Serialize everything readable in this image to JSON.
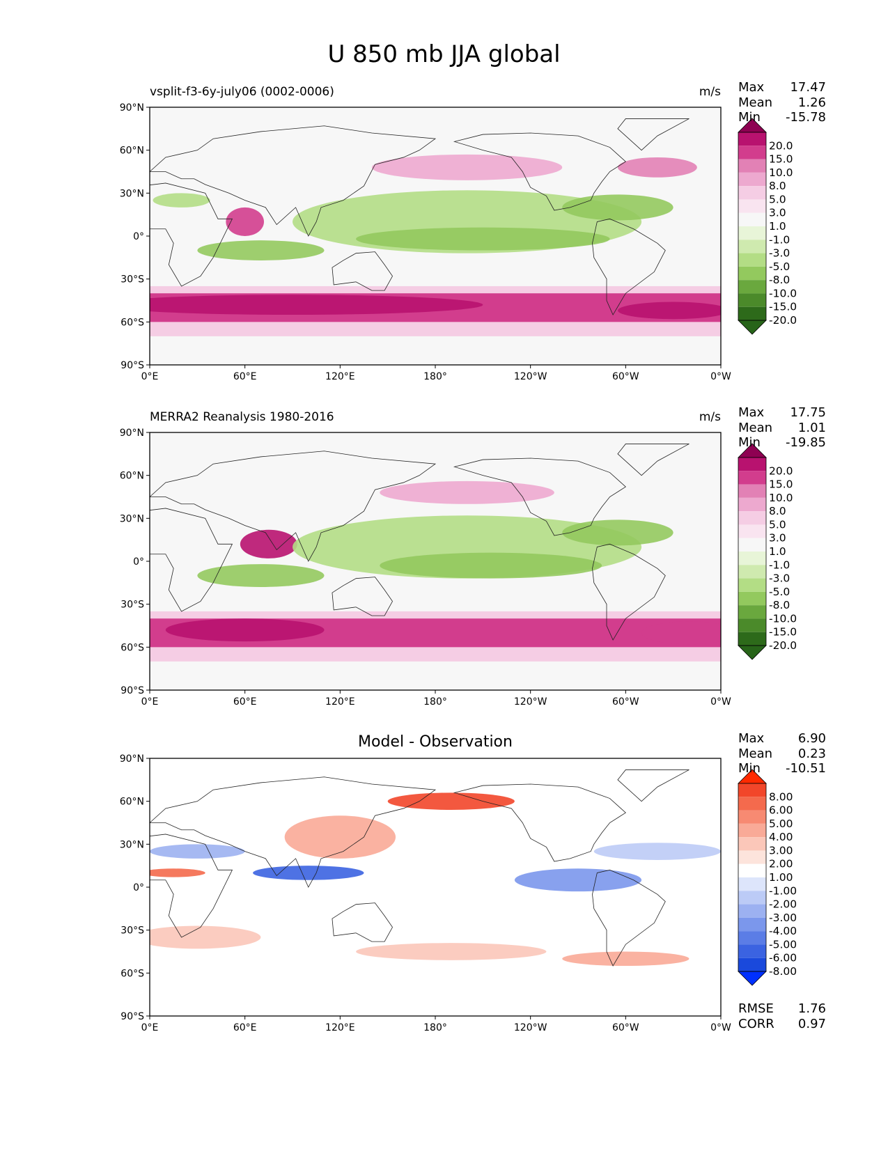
{
  "title": "U 850 mb JJA global",
  "x_ticks": [
    "0°E",
    "60°E",
    "120°E",
    "180°",
    "120°W",
    "60°W",
    "0°W"
  ],
  "y_ticks": [
    "90°N",
    "60°N",
    "30°N",
    "0°",
    "30°S",
    "60°S",
    "90°S"
  ],
  "panels": [
    {
      "left_label": "vsplit-f3-6y-july06 (0002-0006)",
      "center_label": "",
      "units": "m/s",
      "stats": {
        "max_label": "Max",
        "max": "17.47",
        "mean_label": "Mean",
        "mean": "1.26",
        "min_label": "Min",
        "min": "-15.78"
      },
      "colorbar_labels": [
        "20.0",
        "15.0",
        "10.0",
        "8.0",
        "5.0",
        "3.0",
        "1.0",
        "-1.0",
        "-3.0",
        "-5.0",
        "-8.0",
        "-10.0",
        "-15.0",
        "-20.0"
      ],
      "colorbar_colors": [
        "#8e0152",
        "#b8126f",
        "#d23d8d",
        "#e281b5",
        "#eda9cf",
        "#f5cde4",
        "#f9e4f0",
        "#f7f7f7",
        "#e8f5d8",
        "#cfeaaf",
        "#b3dd85",
        "#93c95e",
        "#6aa83e",
        "#4b8a2a",
        "#2d6a1a",
        "#276419"
      ]
    },
    {
      "left_label": "MERRA2 Reanalysis 1980-2016",
      "center_label": "",
      "units": "m/s",
      "stats": {
        "max_label": "Max",
        "max": "17.75",
        "mean_label": "Mean",
        "mean": "1.01",
        "min_label": "Min",
        "min": "-19.85"
      },
      "colorbar_labels": [
        "20.0",
        "15.0",
        "10.0",
        "8.0",
        "5.0",
        "3.0",
        "1.0",
        "-1.0",
        "-3.0",
        "-5.0",
        "-8.0",
        "-10.0",
        "-15.0",
        "-20.0"
      ],
      "colorbar_colors": [
        "#8e0152",
        "#b8126f",
        "#d23d8d",
        "#e281b5",
        "#eda9cf",
        "#f5cde4",
        "#f9e4f0",
        "#f7f7f7",
        "#e8f5d8",
        "#cfeaaf",
        "#b3dd85",
        "#93c95e",
        "#6aa83e",
        "#4b8a2a",
        "#2d6a1a",
        "#276419"
      ]
    },
    {
      "left_label": "",
      "center_label": "Model - Observation",
      "units": "",
      "stats": {
        "max_label": "Max",
        "max": "6.90",
        "mean_label": "Mean",
        "mean": "0.23",
        "min_label": "Min",
        "min": "-10.51"
      },
      "colorbar_labels": [
        "8.00",
        "6.00",
        "5.00",
        "4.00",
        "3.00",
        "2.00",
        "1.00",
        "-1.00",
        "-2.00",
        "-3.00",
        "-4.00",
        "-5.00",
        "-6.00",
        "-8.00"
      ],
      "colorbar_colors": [
        "#ff2a00",
        "#f2462a",
        "#f46a4d",
        "#f78a72",
        "#f9aa97",
        "#fbc7b9",
        "#fde4dc",
        "#ffffff",
        "#dde5fb",
        "#bccbf6",
        "#9cb1f1",
        "#7b97ec",
        "#5b7de6",
        "#3b63e1",
        "#1a49dc",
        "#0030ff"
      ]
    }
  ],
  "footer": {
    "rmse_label": "RMSE",
    "rmse": "1.76",
    "corr_label": "CORR",
    "corr": "0.97"
  },
  "chart_data": [
    {
      "type": "heatmap",
      "title": "vsplit-f3-6y-july06 (0002-0006)",
      "units": "m/s",
      "xlim": [
        0,
        360
      ],
      "ylim": [
        -90,
        90
      ],
      "levels": [
        -20.0,
        -15.0,
        -10.0,
        -8.0,
        -5.0,
        -3.0,
        -1.0,
        1.0,
        3.0,
        5.0,
        8.0,
        10.0,
        15.0,
        20.0
      ],
      "max": 17.47,
      "mean": 1.26,
      "min": -15.78
    },
    {
      "type": "heatmap",
      "title": "MERRA2 Reanalysis 1980-2016",
      "units": "m/s",
      "xlim": [
        0,
        360
      ],
      "ylim": [
        -90,
        90
      ],
      "levels": [
        -20.0,
        -15.0,
        -10.0,
        -8.0,
        -5.0,
        -3.0,
        -1.0,
        1.0,
        3.0,
        5.0,
        8.0,
        10.0,
        15.0,
        20.0
      ],
      "max": 17.75,
      "mean": 1.01,
      "min": -19.85
    },
    {
      "type": "heatmap",
      "title": "Model - Observation",
      "xlim": [
        0,
        360
      ],
      "ylim": [
        -90,
        90
      ],
      "levels": [
        -8.0,
        -6.0,
        -5.0,
        -4.0,
        -3.0,
        -2.0,
        -1.0,
        1.0,
        2.0,
        3.0,
        4.0,
        5.0,
        6.0,
        8.0
      ],
      "max": 6.9,
      "mean": 0.23,
      "min": -10.51,
      "rmse": 1.76,
      "corr": 0.97
    }
  ]
}
